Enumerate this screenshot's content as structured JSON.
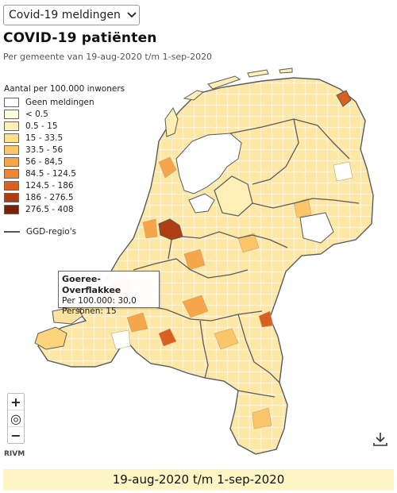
{
  "select": {
    "value": "Covid-19 meldingen"
  },
  "title": "COVID-19 patiënten",
  "subtitle": "Per gemeente van 19-aug-2020 t/m 1-sep-2020",
  "legend": {
    "title": "Aantal per 100.000 inwoners",
    "items": [
      {
        "label": "Geen meldingen",
        "color": "#ffffff"
      },
      {
        "label": "< 0.5",
        "color": "#fdfbe0"
      },
      {
        "label": "0.5 - 15",
        "color": "#fdefb5"
      },
      {
        "label": "15 - 33.5",
        "color": "#fddf8e"
      },
      {
        "label": "33.5 - 56",
        "color": "#fbc56a"
      },
      {
        "label": "56 - 84,5",
        "color": "#f6a64a"
      },
      {
        "label": "84.5 - 124.5",
        "color": "#ee8532"
      },
      {
        "label": "124.5 - 186",
        "color": "#d86020"
      },
      {
        "label": "186 - 276.5",
        "color": "#b03c12"
      },
      {
        "label": "276.5 - 408",
        "color": "#7a2008"
      }
    ],
    "ggd_label": "GGD-regio's"
  },
  "tooltip": {
    "name": "Goeree-Overflakkee",
    "per100k": "Per 100.000: 30,0",
    "personen": "Personen: 15"
  },
  "controls": {
    "zoom_in": "+",
    "locate": "◎",
    "zoom_out": "−",
    "attribution": "RIVM",
    "download_icon": "download-icon"
  },
  "date_range": "19-aug-2020 t/m 1-sep-2020",
  "colors": {
    "border": "#5a5a5a",
    "bottom_bar": "#fdf6c4"
  }
}
